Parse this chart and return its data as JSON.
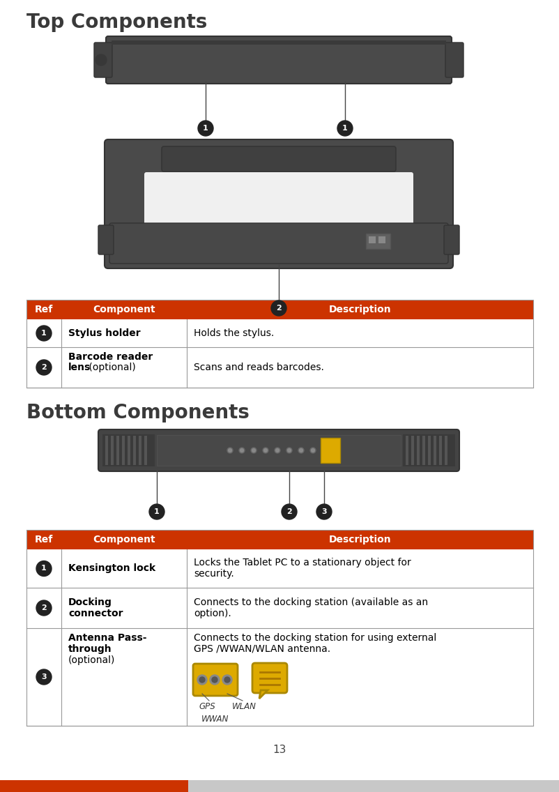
{
  "page_bg": "#ffffff",
  "title_top": "Top Components",
  "title_bottom": "Bottom Components",
  "title_color": "#3a3a3a",
  "title_fontsize": 20,
  "header_bg": "#cc3300",
  "header_text_color": "#ffffff",
  "header_ref": "Ref",
  "header_component": "Component",
  "header_description": "Description",
  "table_border_color": "#999999",
  "top_table_rows": [
    {
      "component_bold": "Stylus holder",
      "component_rest": "",
      "description": "Holds the stylus."
    },
    {
      "component_bold": "Barcode reader\nlens",
      "component_rest": " (optional)",
      "description": "Scans and reads barcodes."
    }
  ],
  "bottom_table_rows": [
    {
      "component_bold": "Kensington lock",
      "component_rest": "",
      "description": "Locks the Tablet PC to a stationary object for\nsecurity."
    },
    {
      "component_bold": "Docking\nconnector",
      "component_rest": "",
      "description": "Connects to the docking station (available as an\noption)."
    },
    {
      "component_bold": "Antenna Pass-\nthrough",
      "component_rest": "\n(optional)",
      "description": "Connects to the docking station for using external\nGPS /WWAN/WLAN antenna."
    }
  ],
  "page_number": "13",
  "footer_red_color": "#cc3300",
  "footer_gray_color": "#c8c8c8",
  "device_dark": "#4a4a4a",
  "device_mid": "#555555",
  "device_light": "#666666",
  "connector_yellow": "#ddaa00",
  "connector_yellow_edge": "#aa8800"
}
